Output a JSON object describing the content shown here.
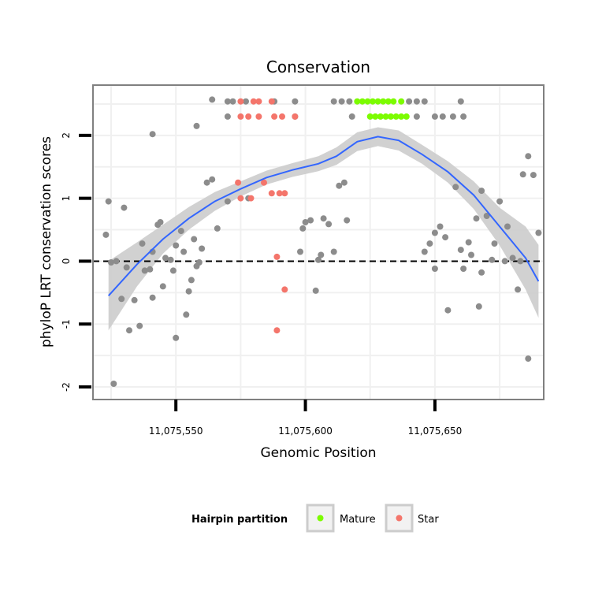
{
  "chart_data": {
    "type": "scatter",
    "title": "Conservation",
    "xlabel": "Genomic Position",
    "ylabel": "phyloP LRT conservation scores",
    "xlim": [
      11075518,
      11075692
    ],
    "ylim": [
      -2.2,
      2.8
    ],
    "x_ticks": [
      {
        "value": 11075550,
        "label": "11,075,550"
      },
      {
        "value": 11075600,
        "label": "11,075,600"
      },
      {
        "value": 11075650,
        "label": "11,075,650"
      }
    ],
    "y_ticks": [
      {
        "value": -2,
        "label": "-2"
      },
      {
        "value": -1,
        "label": "-1"
      },
      {
        "value": 0,
        "label": "0"
      },
      {
        "value": 1,
        "label": "1"
      },
      {
        "value": 2,
        "label": "2"
      }
    ],
    "grid": true,
    "reference_line": {
      "y": 0,
      "style": "dashed"
    },
    "legend": {
      "title": "Hairpin partition",
      "position": "bottom",
      "entries": [
        {
          "name": "Mature",
          "color": "#7cfc00"
        },
        {
          "name": "Star",
          "color": "#f4756b"
        }
      ]
    },
    "colors": {
      "other": "#8c8c8c",
      "Mature": "#7cfc00",
      "Star": "#f4756b",
      "smooth": "#3366ff",
      "ribbon": "#cccccc"
    },
    "smooth": {
      "x": [
        11075524,
        11075535,
        11075545,
        11075555,
        11075565,
        11075575,
        11075585,
        11075595,
        11075605,
        11075612,
        11075620,
        11075628,
        11075636,
        11075645,
        11075655,
        11075665,
        11075675,
        11075685,
        11075690
      ],
      "y": [
        -0.55,
        -0.05,
        0.35,
        0.68,
        0.95,
        1.15,
        1.33,
        1.45,
        1.55,
        1.67,
        1.9,
        1.98,
        1.92,
        1.7,
        1.42,
        1.05,
        0.55,
        0.05,
        -0.32
      ],
      "lower": [
        -1.1,
        -0.4,
        0.12,
        0.5,
        0.8,
        1.03,
        1.22,
        1.34,
        1.43,
        1.53,
        1.75,
        1.83,
        1.76,
        1.55,
        1.25,
        0.83,
        0.25,
        -0.45,
        -0.9
      ],
      "upper": [
        0.0,
        0.3,
        0.58,
        0.86,
        1.1,
        1.27,
        1.44,
        1.56,
        1.67,
        1.81,
        2.05,
        2.13,
        2.08,
        1.85,
        1.59,
        1.27,
        0.85,
        0.55,
        0.26
      ]
    },
    "series": [
      {
        "name": "Mature",
        "points": [
          [
            11075620,
            2.54
          ],
          [
            11075622,
            2.54
          ],
          [
            11075624,
            2.54
          ],
          [
            11075626,
            2.54
          ],
          [
            11075628,
            2.54
          ],
          [
            11075630,
            2.54
          ],
          [
            11075632,
            2.54
          ],
          [
            11075634,
            2.54
          ],
          [
            11075637,
            2.54
          ],
          [
            11075625,
            2.3
          ],
          [
            11075627,
            2.3
          ],
          [
            11075629,
            2.3
          ],
          [
            11075631,
            2.3
          ],
          [
            11075633,
            2.3
          ],
          [
            11075635,
            2.3
          ],
          [
            11075637,
            2.3
          ],
          [
            11075639,
            2.3
          ]
        ]
      },
      {
        "name": "Star",
        "points": [
          [
            11075575,
            2.54
          ],
          [
            11075580,
            2.54
          ],
          [
            11075582,
            2.54
          ],
          [
            11075587,
            2.54
          ],
          [
            11075575,
            2.3
          ],
          [
            11075578,
            2.3
          ],
          [
            11075582,
            2.3
          ],
          [
            11075588,
            2.3
          ],
          [
            11075591,
            2.3
          ],
          [
            11075596,
            2.3
          ],
          [
            11075574,
            1.25
          ],
          [
            11075584,
            1.25
          ],
          [
            11075575,
            1.0
          ],
          [
            11075579,
            1.0
          ],
          [
            11075587,
            1.08
          ],
          [
            11075590,
            1.08
          ],
          [
            11075592,
            1.08
          ],
          [
            11075589,
            0.07
          ],
          [
            11075592,
            -0.45
          ],
          [
            11075589,
            -1.1
          ]
        ]
      },
      {
        "points": [
          [
            11075564,
            2.57
          ],
          [
            11075570,
            2.54
          ],
          [
            11075572,
            2.54
          ],
          [
            11075577,
            2.54
          ],
          [
            11075588,
            2.54
          ],
          [
            11075596,
            2.54
          ],
          [
            11075611,
            2.54
          ],
          [
            11075614,
            2.54
          ],
          [
            11075617,
            2.54
          ],
          [
            11075640,
            2.54
          ],
          [
            11075643,
            2.54
          ],
          [
            11075646,
            2.54
          ],
          [
            11075660,
            2.54
          ],
          [
            11075570,
            2.3
          ],
          [
            11075596,
            2.3
          ],
          [
            11075618,
            2.3
          ],
          [
            11075643,
            2.3
          ],
          [
            11075650,
            2.3
          ],
          [
            11075653,
            2.3
          ],
          [
            11075657,
            2.3
          ],
          [
            11075661,
            2.3
          ],
          [
            11075558,
            2.15
          ],
          [
            11075541,
            2.02
          ],
          [
            11075524,
            0.95
          ],
          [
            11075527,
            0.0
          ],
          [
            11075530,
            0.85
          ],
          [
            11075531,
            -0.1
          ],
          [
            11075523,
            0.42
          ],
          [
            11075525,
            -0.02
          ],
          [
            11075529,
            -0.6
          ],
          [
            11075532,
            -1.1
          ],
          [
            11075534,
            -0.62
          ],
          [
            11075537,
            0.28
          ],
          [
            11075536,
            -1.03
          ],
          [
            11075538,
            -0.15
          ],
          [
            11075540,
            -0.13
          ],
          [
            11075541,
            0.15
          ],
          [
            11075543,
            0.58
          ],
          [
            11075544,
            0.62
          ],
          [
            11075546,
            0.05
          ],
          [
            11075548,
            0.02
          ],
          [
            11075549,
            -0.15
          ],
          [
            11075550,
            0.25
          ],
          [
            11075552,
            0.48
          ],
          [
            11075553,
            0.15
          ],
          [
            11075554,
            -0.85
          ],
          [
            11075555,
            -0.48
          ],
          [
            11075556,
            -0.3
          ],
          [
            11075557,
            0.35
          ],
          [
            11075558,
            -0.08
          ],
          [
            11075559,
            -0.02
          ],
          [
            11075560,
            0.2
          ],
          [
            11075562,
            1.25
          ],
          [
            11075564,
            1.3
          ],
          [
            11075566,
            0.52
          ],
          [
            11075570,
            0.95
          ],
          [
            11075578,
            1.0
          ],
          [
            11075550,
            -1.22
          ],
          [
            11075526,
            -1.95
          ],
          [
            11075541,
            -0.58
          ],
          [
            11075545,
            -0.4
          ],
          [
            11075599,
            0.52
          ],
          [
            11075600,
            0.62
          ],
          [
            11075602,
            0.65
          ],
          [
            11075598,
            0.15
          ],
          [
            11075604,
            -0.47
          ],
          [
            11075606,
            0.1
          ],
          [
            11075607,
            0.68
          ],
          [
            11075609,
            0.59
          ],
          [
            11075611,
            0.15
          ],
          [
            11075613,
            1.2
          ],
          [
            11075615,
            1.25
          ],
          [
            11075616,
            0.65
          ],
          [
            11075605,
            0.02
          ],
          [
            11075646,
            0.15
          ],
          [
            11075648,
            0.28
          ],
          [
            11075650,
            0.45
          ],
          [
            11075652,
            0.55
          ],
          [
            11075654,
            0.38
          ],
          [
            11075650,
            -0.12
          ],
          [
            11075655,
            -0.78
          ],
          [
            11075658,
            1.18
          ],
          [
            11075660,
            0.18
          ],
          [
            11075661,
            -0.12
          ],
          [
            11075663,
            0.3
          ],
          [
            11075664,
            0.1
          ],
          [
            11075666,
            0.68
          ],
          [
            11075667,
            -0.72
          ],
          [
            11075668,
            1.12
          ],
          [
            11075670,
            0.72
          ],
          [
            11075672,
            0.02
          ],
          [
            11075673,
            0.28
          ],
          [
            11075675,
            0.95
          ],
          [
            11075678,
            0.55
          ],
          [
            11075680,
            0.05
          ],
          [
            11075682,
            -0.45
          ],
          [
            11075684,
            1.38
          ],
          [
            11075686,
            -1.55
          ],
          [
            11075688,
            1.37
          ],
          [
            11075686,
            1.67
          ],
          [
            11075690,
            0.45
          ],
          [
            11075668,
            -0.18
          ],
          [
            11075677,
            0.0
          ],
          [
            11075683,
            0.0
          ]
        ]
      }
    ]
  }
}
